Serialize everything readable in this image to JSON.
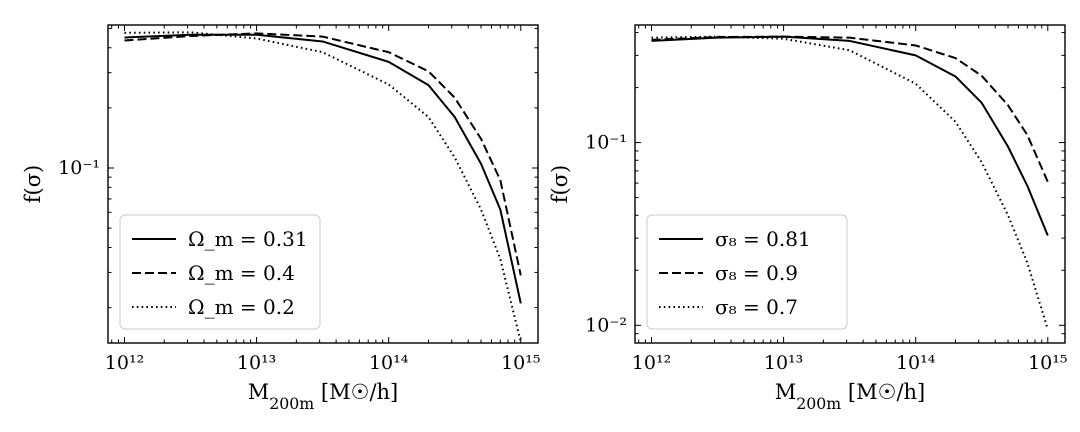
{
  "chart_data": [
    {
      "type": "line",
      "xlabel": "M_200m [M☉/h]",
      "ylabel": "f(σ)",
      "xscale": "log",
      "yscale": "log",
      "xlim": [
        750000000000.0,
        1350000000000000.0
      ],
      "ylim": [
        0.0133,
        0.52
      ],
      "x_ticks": [
        {
          "value": 1000000000000.0,
          "label": "10¹²"
        },
        {
          "value": 10000000000000.0,
          "label": "10¹³"
        },
        {
          "value": 100000000000000.0,
          "label": "10¹⁴"
        },
        {
          "value": 1000000000000000.0,
          "label": "10¹⁵"
        }
      ],
      "y_ticks": [
        {
          "value": 0.1,
          "label": "10⁻¹"
        }
      ],
      "legend_position": "lower-left",
      "x": [
        1000000000000.0,
        3160000000000.0,
        10000000000000.0,
        31600000000000.0,
        100000000000000.0,
        200000000000000.0,
        316000000000000.0,
        500000000000000.0,
        700000000000000.0,
        1000000000000000.0
      ],
      "series": [
        {
          "name": "Ω_m = 0.31",
          "style": "solid",
          "values": [
            0.45,
            0.465,
            0.465,
            0.43,
            0.34,
            0.26,
            0.18,
            0.105,
            0.062,
            0.021
          ]
        },
        {
          "name": "Ω_m = 0.4",
          "style": "dashed",
          "values": [
            0.435,
            0.458,
            0.472,
            0.455,
            0.38,
            0.305,
            0.225,
            0.14,
            0.087,
            0.029
          ]
        },
        {
          "name": "Ω_m = 0.2",
          "style": "dotted",
          "values": [
            0.475,
            0.478,
            0.445,
            0.38,
            0.262,
            0.18,
            0.113,
            0.062,
            0.035,
            0.0135
          ]
        }
      ]
    },
    {
      "type": "line",
      "xlabel": "M_200m [M☉/h]",
      "ylabel": "f(σ)",
      "xscale": "log",
      "yscale": "log",
      "xlim": [
        750000000000.0,
        1350000000000000.0
      ],
      "ylim": [
        0.008,
        0.44
      ],
      "x_ticks": [
        {
          "value": 1000000000000.0,
          "label": "10¹²"
        },
        {
          "value": 10000000000000.0,
          "label": "10¹³"
        },
        {
          "value": 100000000000000.0,
          "label": "10¹⁴"
        },
        {
          "value": 1000000000000000.0,
          "label": "10¹⁵"
        }
      ],
      "y_ticks": [
        {
          "value": 0.1,
          "label": "10⁻¹"
        },
        {
          "value": 0.01,
          "label": "10⁻²"
        }
      ],
      "legend_position": "lower-left",
      "x": [
        1000000000000.0,
        3160000000000.0,
        10000000000000.0,
        31600000000000.0,
        100000000000000.0,
        200000000000000.0,
        316000000000000.0,
        500000000000000.0,
        700000000000000.0,
        1000000000000000.0
      ],
      "series": [
        {
          "name": "σ₈ = 0.81",
          "style": "solid",
          "values": [
            0.36,
            0.375,
            0.38,
            0.36,
            0.3,
            0.23,
            0.165,
            0.095,
            0.058,
            0.031
          ]
        },
        {
          "name": "σ₈ = 0.9",
          "style": "dashed",
          "values": [
            0.365,
            0.378,
            0.38,
            0.375,
            0.34,
            0.29,
            0.232,
            0.16,
            0.11,
            0.061
          ]
        },
        {
          "name": "σ₈ = 0.7",
          "style": "dotted",
          "values": [
            0.375,
            0.38,
            0.37,
            0.32,
            0.21,
            0.13,
            0.078,
            0.04,
            0.022,
            0.0095
          ]
        }
      ]
    }
  ]
}
